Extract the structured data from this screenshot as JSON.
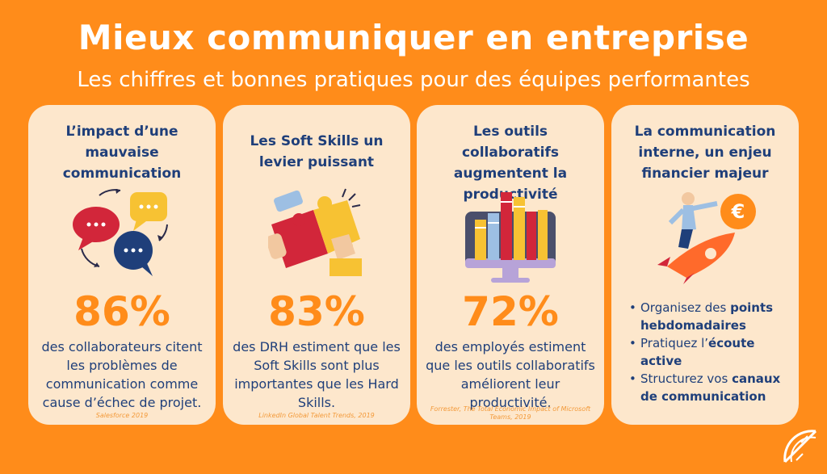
{
  "header": {
    "title": "Mieux communiquer en entreprise",
    "subtitle": "Les chiffres et bonnes pratiques pour des équipes performantes"
  },
  "cards": [
    {
      "title": "L’impact d’une mauvaise communication",
      "icon": "speech-bubbles-icon",
      "stat": "86%",
      "description": "des collaborateurs citent les problèmes de communication comme cause d’échec de projet.",
      "source": "Salesforce 2019"
    },
    {
      "title": "Les Soft Skills un levier puissant",
      "icon": "puzzle-hands-icon",
      "stat": "83%",
      "description": "des DRH estiment que les Soft Skills sont plus importantes que les Hard Skills.",
      "source": "LinkedIn Global Talent Trends, 2019"
    },
    {
      "title": "Les outils collaboratifs augmentent la productivité",
      "icon": "monitor-books-icon",
      "stat": "72%",
      "description": "des employés estiment que les outils collaboratifs améliorent leur productivité.",
      "source": "Forrester, The Total Economic Impact of Microsoft Teams, 2019"
    },
    {
      "title": "La communication interne, un enjeu financier majeur",
      "icon": "rocket-euro-icon",
      "bullets": [
        {
          "text": "Organisez des ",
          "bold": "points hebdomadaires"
        },
        {
          "text": "Pratiquez l’",
          "bold": "écoute active"
        },
        {
          "text": "Structurez vos ",
          "bold": "canaux de communication"
        }
      ]
    }
  ],
  "colors": {
    "background": "#FF8C1A",
    "card": "#FDE7CC",
    "navy": "#1F3F7A",
    "accent": "#FF8C1A"
  },
  "logo": "orange-slice-logo-icon"
}
